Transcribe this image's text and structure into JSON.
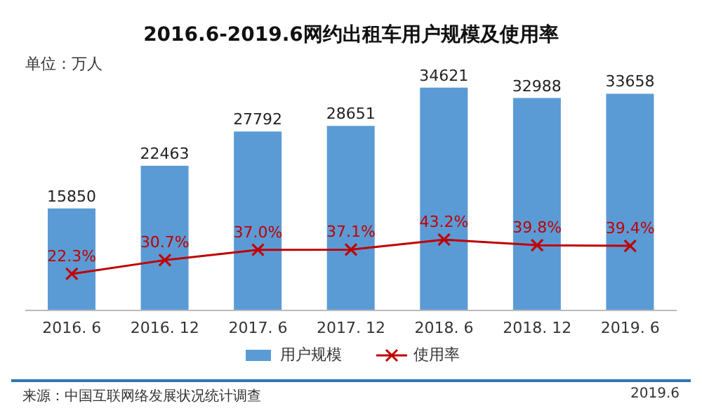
{
  "chart_data": {
    "type": "bar",
    "title": "2016.6-2019.6网约出租车用户规模及使用率",
    "annotations": [
      "单位：万人",
      "来源：中国互联网络发展状况统计调查",
      "2019.6"
    ],
    "categories": [
      "2016. 6",
      "2016. 12",
      "2017. 6",
      "2017. 12",
      "2018. 6",
      "2018. 12",
      "2019. 6"
    ],
    "series": [
      {
        "name": "用户规模",
        "color": "#5b9bd5",
        "values": [
          15850,
          22463,
          27792,
          28651,
          34621,
          32988,
          33658
        ],
        "data_labels": true
      },
      {
        "name": "使用率",
        "type": "line",
        "axis": "y2",
        "color": "#c00000",
        "marker": "cross",
        "values": [
          22.3,
          30.7,
          37.0,
          37.1,
          43.2,
          39.8,
          39.4
        ],
        "value_labels": [
          "22.3%",
          "30.7%",
          "37.0%",
          "37.1%",
          "43.2%",
          "39.8%",
          "39.4%"
        ]
      }
    ],
    "legend": "bottom",
    "tick_labels": "x"
  }
}
